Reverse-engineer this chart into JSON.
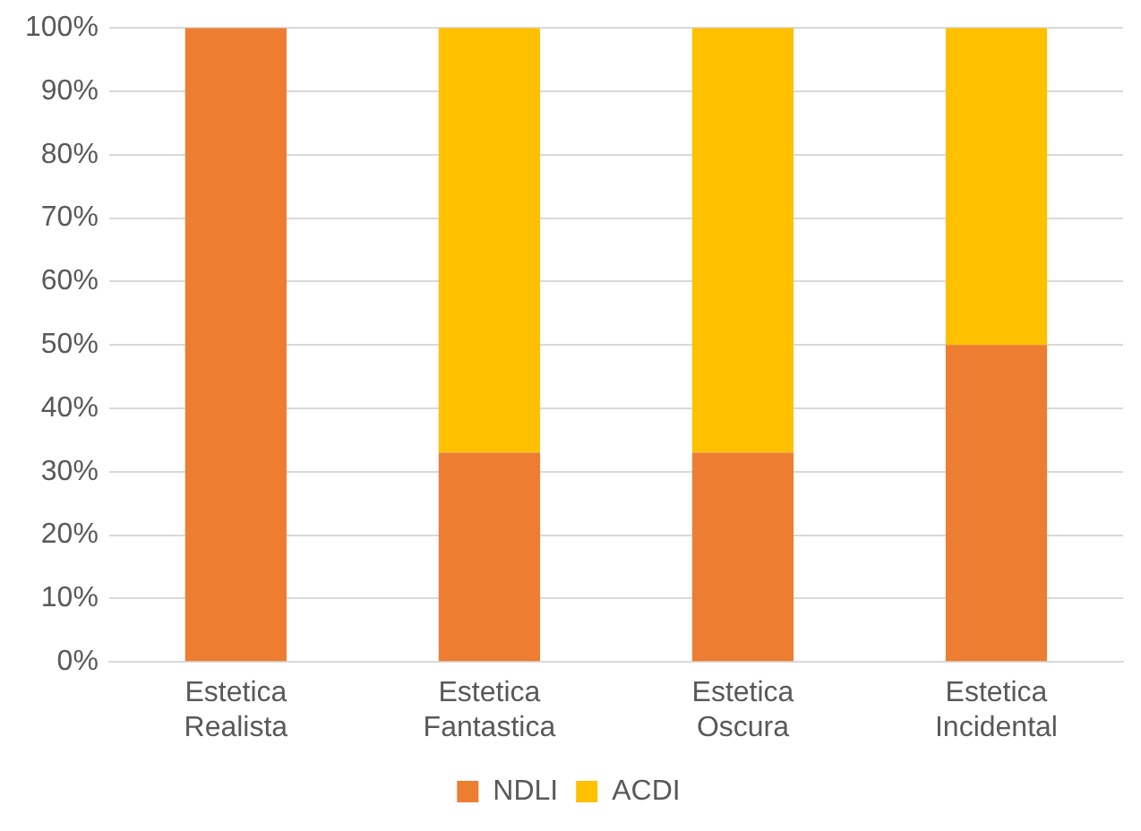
{
  "chart_data": {
    "type": "bar",
    "stacked": true,
    "categories": [
      "Estetica Realista",
      "Estetica Fantastica",
      "Estetica Oscura",
      "Estetica Incidental"
    ],
    "series": [
      {
        "name": "NDLI",
        "color": "#ed7d31",
        "values": [
          100,
          33,
          33,
          50
        ]
      },
      {
        "name": "ACDI",
        "color": "#ffc000",
        "values": [
          0,
          67,
          67,
          50
        ]
      }
    ],
    "ylim": [
      0,
      100
    ],
    "yticks": [
      {
        "value": 0,
        "label": "0%"
      },
      {
        "value": 10,
        "label": "10%"
      },
      {
        "value": 20,
        "label": "20%"
      },
      {
        "value": 30,
        "label": "30%"
      },
      {
        "value": 40,
        "label": "40%"
      },
      {
        "value": 50,
        "label": "50%"
      },
      {
        "value": 60,
        "label": "60%"
      },
      {
        "value": 70,
        "label": "70%"
      },
      {
        "value": 80,
        "label": "80%"
      },
      {
        "value": 90,
        "label": "90%"
      },
      {
        "value": 100,
        "label": "100%"
      }
    ],
    "grid": "y",
    "legend": "bottom"
  }
}
